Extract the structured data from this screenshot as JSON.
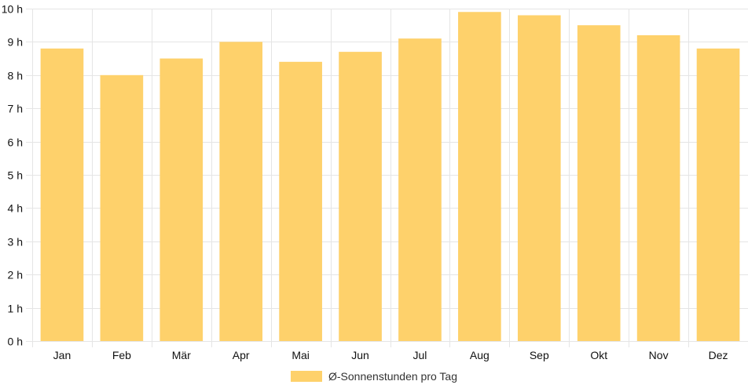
{
  "chart_data": {
    "type": "bar",
    "categories": [
      "Jan",
      "Feb",
      "Mär",
      "Apr",
      "Mai",
      "Jun",
      "Jul",
      "Aug",
      "Sep",
      "Okt",
      "Nov",
      "Dez"
    ],
    "series": [
      {
        "name": "Ø-Sonnenstunden pro Tag",
        "values": [
          8.8,
          8.0,
          8.5,
          9.0,
          8.4,
          8.7,
          9.1,
          9.9,
          9.8,
          9.5,
          9.2,
          8.8
        ]
      }
    ],
    "y_ticks": [
      "0 h",
      "1 h",
      "2 h",
      "3 h",
      "4 h",
      "5 h",
      "6 h",
      "7 h",
      "8 h",
      "9 h",
      "10 h"
    ],
    "ylim": [
      0,
      10
    ],
    "grid": true,
    "legend_position": "bottom",
    "colors": {
      "bar": "#fed16b",
      "grid": "#e5e5e5",
      "text": "#111111"
    }
  }
}
